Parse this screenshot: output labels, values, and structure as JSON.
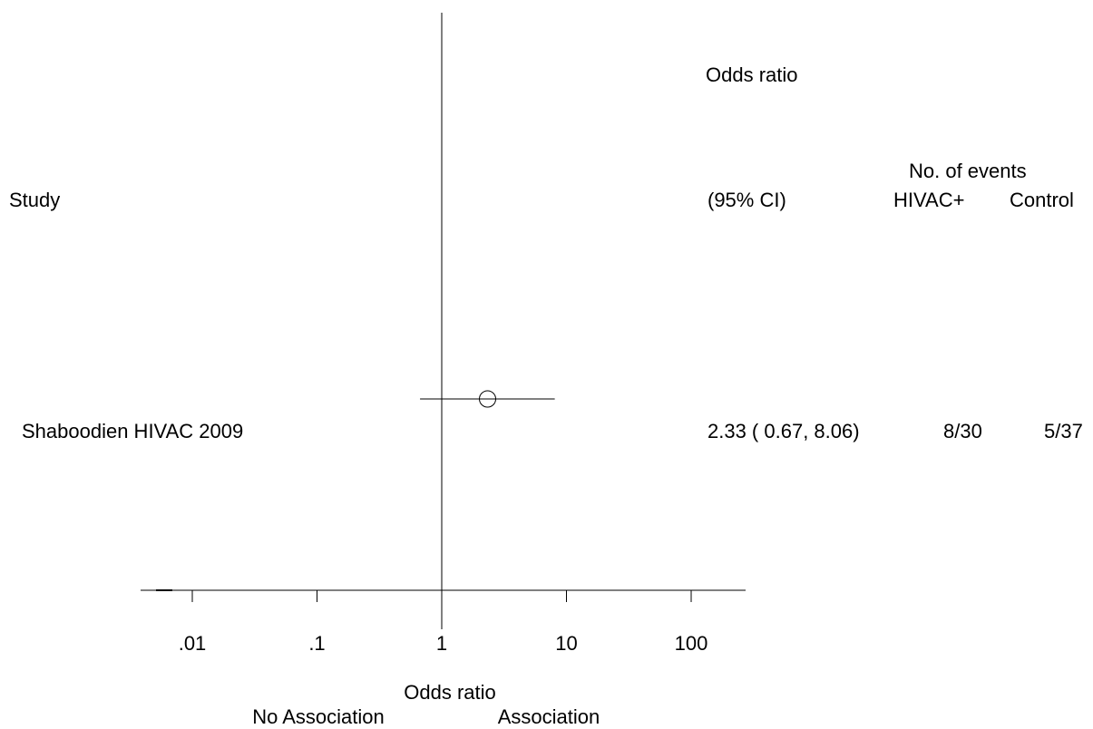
{
  "header": {
    "or_title": "Odds ratio",
    "ci_label": "(95% CI)",
    "events_title": "No. of events",
    "col_study": "Study",
    "col_group1": "HIVAC+",
    "col_group2": "Control"
  },
  "chart_data": {
    "type": "forest",
    "scale": "log10",
    "xlabel": "Odds ratio",
    "xticks": [
      0.01,
      0.1,
      1,
      10,
      100
    ],
    "xtick_labels": [
      ".01",
      ".1",
      "1",
      "10",
      "100"
    ],
    "null_value": 1,
    "direction_labels": {
      "left": "No Association",
      "right": "Association"
    },
    "studies": [
      {
        "name": "Shaboodien HIVAC 2009",
        "or": 2.33,
        "ci_low": 0.67,
        "ci_high": 8.06,
        "ci_text": "2.33 ( 0.67, 8.06)",
        "events_group1": "8/30",
        "events_group2": "5/37"
      }
    ]
  }
}
